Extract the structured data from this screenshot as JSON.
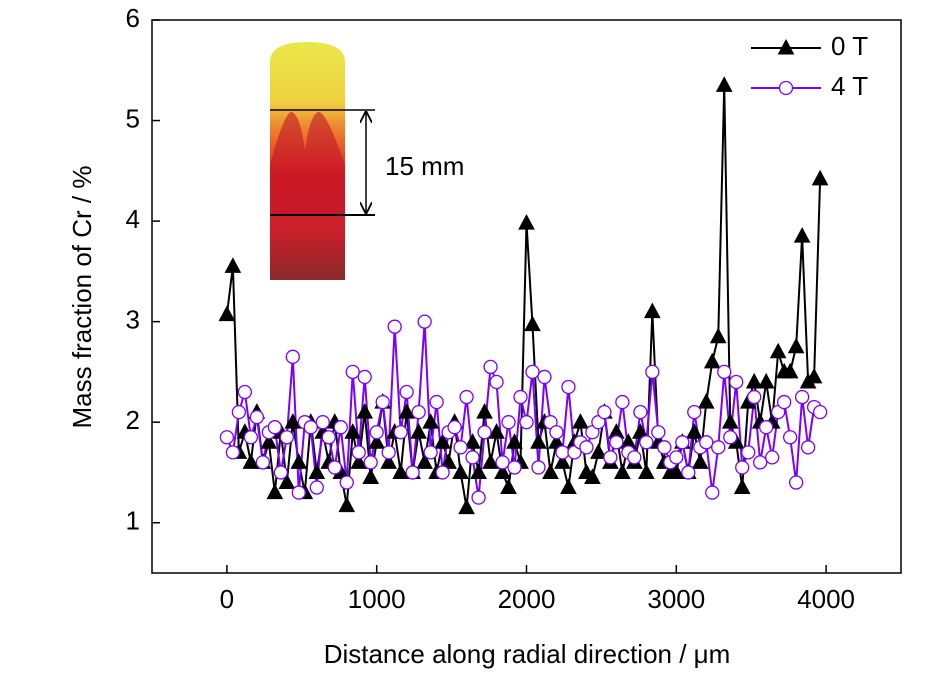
{
  "chart_data": {
    "type": "line",
    "xlabel": "Distance along radial direction / μm",
    "ylabel": "Mass fraction of Cr / %",
    "annotations": [
      "15 mm"
    ],
    "x": [
      0,
      40,
      80,
      120,
      160,
      200,
      240,
      280,
      320,
      360,
      400,
      440,
      480,
      520,
      560,
      600,
      640,
      680,
      720,
      760,
      800,
      840,
      880,
      920,
      960,
      1000,
      1040,
      1080,
      1120,
      1160,
      1200,
      1240,
      1280,
      1320,
      1360,
      1400,
      1440,
      1480,
      1520,
      1560,
      1600,
      1640,
      1680,
      1720,
      1760,
      1800,
      1840,
      1880,
      1920,
      1960,
      2000,
      2040,
      2080,
      2120,
      2160,
      2200,
      2240,
      2280,
      2320,
      2360,
      2400,
      2440,
      2480,
      2520,
      2560,
      2600,
      2640,
      2680,
      2720,
      2760,
      2800,
      2840,
      2880,
      2920,
      2960,
      3000,
      3040,
      3080,
      3120,
      3160,
      3200,
      3240,
      3280,
      3320,
      3360,
      3400,
      3440,
      3480,
      3520,
      3560,
      3600,
      3640,
      3680,
      3720,
      3760,
      3800,
      3840,
      3880,
      3920,
      3960
    ],
    "series": [
      {
        "name": "0 T",
        "color": "#000000",
        "marker": "triangle",
        "values": [
          3.07,
          3.55,
          1.7,
          1.9,
          1.6,
          2.1,
          1.6,
          1.8,
          1.3,
          1.9,
          1.4,
          2.0,
          1.6,
          1.3,
          2.0,
          1.5,
          1.9,
          1.6,
          2.0,
          1.5,
          1.17,
          1.9,
          1.6,
          2.1,
          1.45,
          1.8,
          2.2,
          1.6,
          1.9,
          1.5,
          2.1,
          1.5,
          1.9,
          1.6,
          2.0,
          1.5,
          1.8,
          1.6,
          2.0,
          1.5,
          1.15,
          1.8,
          1.5,
          2.1,
          1.6,
          1.9,
          1.5,
          1.35,
          1.8,
          1.6,
          3.98,
          2.97,
          1.8,
          2.0,
          1.5,
          1.8,
          1.6,
          1.35,
          1.8,
          2.0,
          1.5,
          1.45,
          1.7,
          2.1,
          1.6,
          1.9,
          1.5,
          1.8,
          1.6,
          1.9,
          1.5,
          3.1,
          1.8,
          1.6,
          1.5,
          1.5,
          1.8,
          1.5,
          1.9,
          1.6,
          2.2,
          2.6,
          2.85,
          5.35,
          2.0,
          1.8,
          1.35,
          2.2,
          2.4,
          2.0,
          2.4,
          2.0,
          2.7,
          2.5,
          2.5,
          2.75,
          3.85,
          2.4,
          2.45,
          4.42
        ]
      },
      {
        "name": "4 T",
        "color": "#7b00ff",
        "marker": "circle",
        "values": [
          1.85,
          1.7,
          2.1,
          2.3,
          1.85,
          2.05,
          1.6,
          1.9,
          1.95,
          1.5,
          1.85,
          2.65,
          1.3,
          2.0,
          1.95,
          1.35,
          2.0,
          1.85,
          1.55,
          1.95,
          1.4,
          2.5,
          1.7,
          2.45,
          1.6,
          1.9,
          2.2,
          1.7,
          2.95,
          1.9,
          2.3,
          1.5,
          2.1,
          3.0,
          1.7,
          2.2,
          1.5,
          1.9,
          1.95,
          1.75,
          2.25,
          1.65,
          1.25,
          1.9,
          2.55,
          2.4,
          1.6,
          2.0,
          1.55,
          2.25,
          2.0,
          2.5,
          1.55,
          2.45,
          2.0,
          1.9,
          1.7,
          2.35,
          1.7,
          1.8,
          1.75,
          1.9,
          2.0,
          2.1,
          1.65,
          1.8,
          2.2,
          1.7,
          1.65,
          2.1,
          1.8,
          2.5,
          1.9,
          1.75,
          1.6,
          1.65,
          1.8,
          1.5,
          2.1,
          1.75,
          1.8,
          1.3,
          1.75,
          2.5,
          1.85,
          2.4,
          1.55,
          1.7,
          2.25,
          1.6,
          1.95,
          1.65,
          2.1,
          2.2,
          1.85,
          1.4,
          2.25,
          1.75,
          2.15,
          2.1
        ]
      }
    ],
    "xlim": [
      -500,
      4500
    ],
    "xticks": [
      0,
      1000,
      2000,
      3000,
      4000
    ],
    "ylim": [
      0.5,
      6
    ],
    "yticks": [
      1,
      2,
      3,
      4,
      5,
      6
    ],
    "legend": "upper right"
  }
}
